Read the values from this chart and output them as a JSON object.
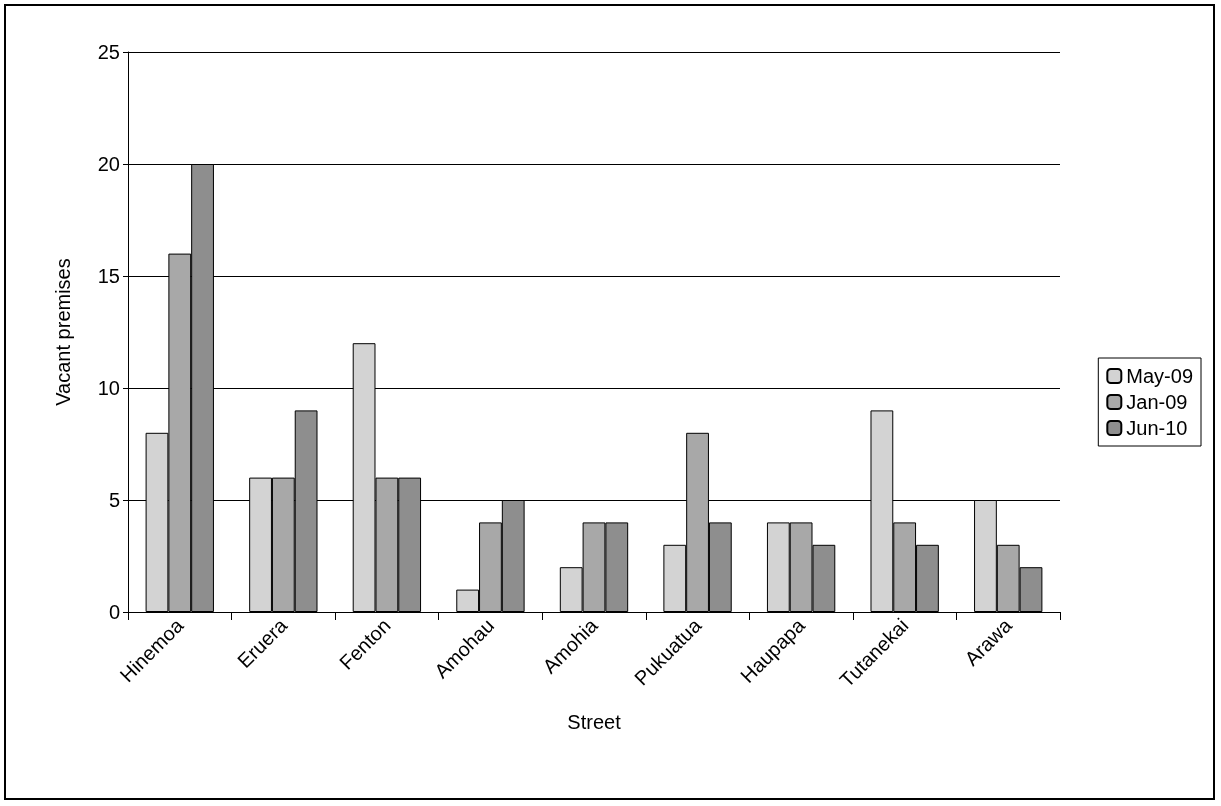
{
  "chart_data": {
    "type": "bar",
    "xlabel": "Street",
    "ylabel": "Vacant premises",
    "categories": [
      "Hinemoa",
      "Eruera",
      "Fenton",
      "Amohau",
      "Amohia",
      "Pukuatua",
      "Haupapa",
      "Tutanekai",
      "Arawa"
    ],
    "series": [
      {
        "name": "May-09",
        "color": "#d3d3d3",
        "values": [
          8,
          6,
          12,
          1,
          2,
          3,
          4,
          9,
          5
        ]
      },
      {
        "name": "Jan-09",
        "color": "#a8a8a8",
        "values": [
          16,
          6,
          6,
          4,
          4,
          8,
          4,
          4,
          3
        ]
      },
      {
        "name": "Jun-10",
        "color": "#8e8e8e",
        "values": [
          20,
          9,
          6,
          5,
          4,
          4,
          3,
          3,
          2
        ]
      }
    ],
    "ylim": [
      0,
      25
    ],
    "yticks": [
      0,
      5,
      10,
      15,
      20,
      25
    ],
    "grid": "y",
    "legend": "right"
  }
}
